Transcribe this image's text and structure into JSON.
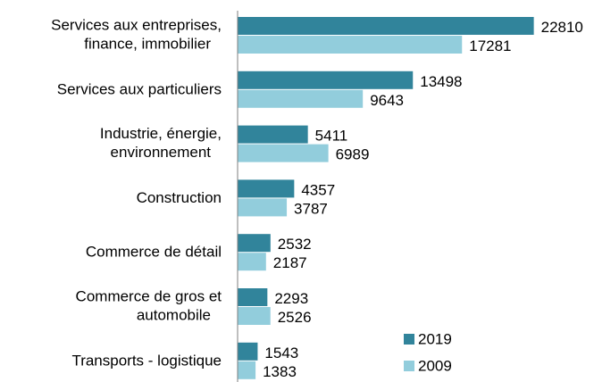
{
  "chart_data": {
    "type": "hbar",
    "categories": [
      "Services aux entreprises,\nfinance, immobilier",
      "Services aux particuliers",
      "Industrie, énergie,\nenvironnement",
      "Construction",
      "Commerce de détail",
      "Commerce de gros et\nautomobile",
      "Transports - logistique"
    ],
    "series": [
      {
        "name": "2019",
        "color": "#31849b",
        "values": [
          22810,
          13498,
          5411,
          4357,
          2532,
          2293,
          1543
        ]
      },
      {
        "name": "2009",
        "color": "#92cddc",
        "values": [
          17281,
          9643,
          6989,
          3787,
          2187,
          2526,
          1383
        ]
      }
    ],
    "xlim": [
      0,
      26000
    ],
    "legend": "lower right"
  }
}
